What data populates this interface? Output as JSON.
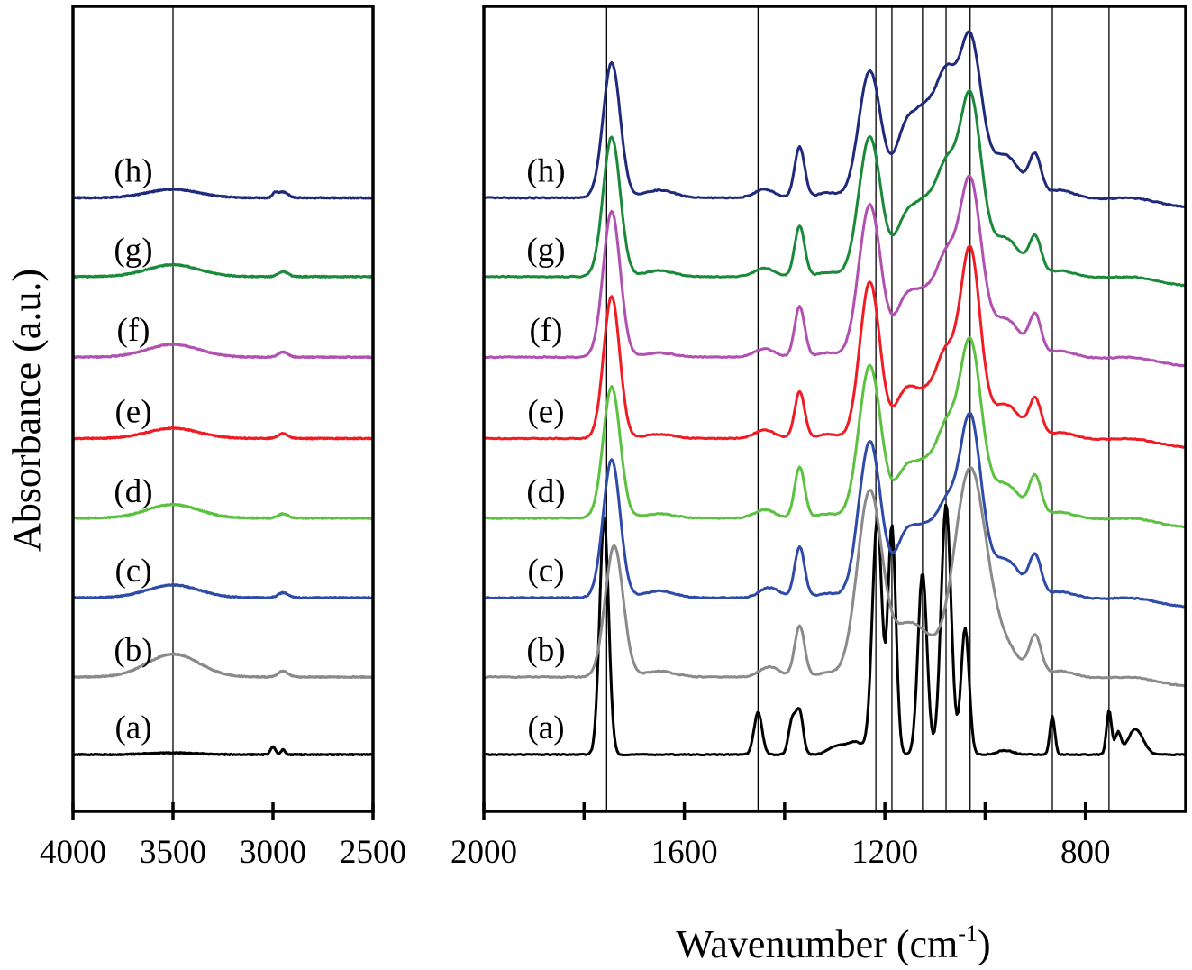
{
  "chart_data": {
    "type": "line",
    "title": "",
    "ylabel": "Absorbance (a.u.)",
    "xlabel": "Wavenumber (cm-1)",
    "xlabel_main": "Wavenumber (cm",
    "xlabel_sup": "-1",
    "xlabel_end": ")",
    "legend": "inline labels at left of each curve",
    "grid": false,
    "ylim": [
      0,
      9.5
    ],
    "panels": [
      {
        "id": "left",
        "xlim": [
          4000,
          2500
        ],
        "xticks": [
          4000,
          3500,
          3000,
          2500
        ],
        "xtick_labels": [
          "4000",
          "3500",
          "3000",
          "2500"
        ],
        "reference_lines": [
          3500
        ]
      },
      {
        "id": "right",
        "xlim": [
          2000,
          600
        ],
        "xticks": [
          2000,
          1800,
          1600,
          1400,
          1200,
          1000,
          800
        ],
        "xtick_labels": [
          "2000",
          "",
          "1600",
          "",
          "1200",
          "",
          "800"
        ],
        "reference_lines": [
          1755,
          1453,
          1218,
          1186,
          1125,
          1078,
          1030,
          866,
          753
        ]
      }
    ],
    "series": [
      {
        "name": "(a)",
        "color": "#000000",
        "offset": 0.67,
        "high_peaks": [
          [
            3000,
            0.09,
            12
          ],
          [
            2950,
            0.06,
            10
          ],
          [
            3500,
            0.02,
            120
          ]
        ],
        "low_peaks": [
          [
            1760,
            2.8,
            9
          ],
          [
            1453,
            0.5,
            8
          ],
          [
            1385,
            0.4,
            7
          ],
          [
            1370,
            0.5,
            7
          ],
          [
            1300,
            0.08,
            15
          ],
          [
            1260,
            0.15,
            20
          ],
          [
            1218,
            2.05,
            9
          ],
          [
            1210,
            1.0,
            8
          ],
          [
            1186,
            2.7,
            8
          ],
          [
            1125,
            2.15,
            9
          ],
          [
            1078,
            2.95,
            10
          ],
          [
            1040,
            1.5,
            8
          ],
          [
            960,
            0.05,
            15
          ],
          [
            866,
            0.45,
            5
          ],
          [
            753,
            0.52,
            5
          ],
          [
            735,
            0.25,
            6
          ],
          [
            700,
            0.3,
            15
          ]
        ]
      },
      {
        "name": "(b)",
        "color": "#8a8a8a",
        "offset": 1.585,
        "high_peaks": [
          [
            3500,
            0.27,
            130
          ],
          [
            2950,
            0.07,
            25
          ]
        ],
        "low_peaks": [
          [
            1740,
            1.55,
            18
          ],
          [
            1650,
            0.07,
            30
          ],
          [
            1430,
            0.12,
            20
          ],
          [
            1370,
            0.6,
            10
          ],
          [
            1315,
            0.05,
            20
          ],
          [
            1230,
            2.2,
            25
          ],
          [
            1160,
            0.5,
            25
          ],
          [
            1120,
            0.35,
            25
          ],
          [
            1030,
            2.45,
            32
          ],
          [
            960,
            0.3,
            30
          ],
          [
            900,
            0.45,
            12
          ],
          [
            850,
            0.07,
            25
          ],
          [
            700,
            0.05,
            40
          ]
        ]
      },
      {
        "name": "(c)",
        "color": "#2e4ba8",
        "offset": 2.52,
        "high_peaks": [
          [
            3500,
            0.15,
            130
          ],
          [
            2950,
            0.06,
            25
          ]
        ],
        "low_peaks": [
          [
            1745,
            1.63,
            17
          ],
          [
            1650,
            0.08,
            30
          ],
          [
            1430,
            0.12,
            20
          ],
          [
            1370,
            0.6,
            10
          ],
          [
            1315,
            0.05,
            20
          ],
          [
            1230,
            1.85,
            22
          ],
          [
            1160,
            0.65,
            20
          ],
          [
            1120,
            0.7,
            22
          ],
          [
            1078,
            0.9,
            20
          ],
          [
            1030,
            2.1,
            22
          ],
          [
            960,
            0.45,
            30
          ],
          [
            900,
            0.45,
            12
          ],
          [
            850,
            0.07,
            25
          ],
          [
            700,
            0.05,
            40
          ]
        ]
      },
      {
        "name": "(d)",
        "color": "#5cc040",
        "offset": 3.46,
        "high_peaks": [
          [
            3500,
            0.16,
            130
          ],
          [
            2950,
            0.05,
            25
          ]
        ],
        "low_peaks": [
          [
            1745,
            1.55,
            17
          ],
          [
            1650,
            0.05,
            30
          ],
          [
            1440,
            0.1,
            20
          ],
          [
            1370,
            0.6,
            10
          ],
          [
            1315,
            0.05,
            20
          ],
          [
            1230,
            1.8,
            22
          ],
          [
            1160,
            0.5,
            20
          ],
          [
            1120,
            0.55,
            22
          ],
          [
            1078,
            0.9,
            20
          ],
          [
            1030,
            2.05,
            22
          ],
          [
            960,
            0.4,
            30
          ],
          [
            900,
            0.45,
            12
          ],
          [
            850,
            0.07,
            25
          ],
          [
            700,
            0.05,
            40
          ]
        ]
      },
      {
        "name": "(e)",
        "color": "#f01c24",
        "offset": 4.4,
        "high_peaks": [
          [
            3500,
            0.12,
            130
          ],
          [
            2950,
            0.06,
            25
          ]
        ],
        "low_peaks": [
          [
            1745,
            1.68,
            16
          ],
          [
            1650,
            0.05,
            30
          ],
          [
            1440,
            0.1,
            20
          ],
          [
            1370,
            0.55,
            10
          ],
          [
            1315,
            0.05,
            20
          ],
          [
            1230,
            1.85,
            20
          ],
          [
            1160,
            0.5,
            20
          ],
          [
            1120,
            0.45,
            22
          ],
          [
            1078,
            0.9,
            20
          ],
          [
            1030,
            2.2,
            20
          ],
          [
            960,
            0.4,
            30
          ],
          [
            900,
            0.42,
            12
          ],
          [
            850,
            0.07,
            25
          ],
          [
            700,
            0.05,
            40
          ]
        ]
      },
      {
        "name": "(f)",
        "color": "#b050b0",
        "offset": 5.36,
        "high_peaks": [
          [
            3500,
            0.15,
            130
          ],
          [
            2950,
            0.06,
            25
          ]
        ],
        "low_peaks": [
          [
            1745,
            1.72,
            17
          ],
          [
            1650,
            0.05,
            30
          ],
          [
            1440,
            0.1,
            20
          ],
          [
            1370,
            0.6,
            10
          ],
          [
            1315,
            0.05,
            20
          ],
          [
            1230,
            1.8,
            22
          ],
          [
            1160,
            0.6,
            20
          ],
          [
            1120,
            0.65,
            22
          ],
          [
            1078,
            1.0,
            20
          ],
          [
            1030,
            2.05,
            22
          ],
          [
            960,
            0.45,
            30
          ],
          [
            900,
            0.45,
            12
          ],
          [
            850,
            0.07,
            25
          ],
          [
            700,
            0.05,
            40
          ]
        ]
      },
      {
        "name": "(g)",
        "color": "#1a8a3a",
        "offset": 6.31,
        "high_peaks": [
          [
            3500,
            0.14,
            130
          ],
          [
            2950,
            0.06,
            25
          ]
        ],
        "low_peaks": [
          [
            1745,
            1.65,
            17
          ],
          [
            1650,
            0.07,
            30
          ],
          [
            1440,
            0.1,
            20
          ],
          [
            1370,
            0.6,
            10
          ],
          [
            1315,
            0.05,
            20
          ],
          [
            1230,
            1.65,
            22
          ],
          [
            1160,
            0.6,
            20
          ],
          [
            1120,
            0.75,
            22
          ],
          [
            1078,
            1.1,
            20
          ],
          [
            1030,
            2.1,
            22
          ],
          [
            960,
            0.45,
            30
          ],
          [
            900,
            0.42,
            12
          ],
          [
            850,
            0.07,
            25
          ],
          [
            700,
            0.05,
            40
          ]
        ]
      },
      {
        "name": "(h)",
        "color": "#1f2a7a",
        "offset": 7.24,
        "high_peaks": [
          [
            3500,
            0.1,
            130
          ],
          [
            2950,
            0.07,
            25
          ],
          [
            2990,
            0.05,
            12
          ]
        ],
        "low_peaks": [
          [
            1745,
            1.6,
            17
          ],
          [
            1650,
            0.09,
            30
          ],
          [
            1440,
            0.1,
            20
          ],
          [
            1370,
            0.6,
            10
          ],
          [
            1315,
            0.06,
            20
          ],
          [
            1230,
            1.5,
            22
          ],
          [
            1160,
            0.72,
            20
          ],
          [
            1120,
            0.9,
            22
          ],
          [
            1078,
            1.25,
            20
          ],
          [
            1030,
            1.85,
            22
          ],
          [
            960,
            0.5,
            30
          ],
          [
            900,
            0.45,
            12
          ],
          [
            850,
            0.09,
            25
          ],
          [
            700,
            0.05,
            40
          ]
        ]
      }
    ]
  }
}
